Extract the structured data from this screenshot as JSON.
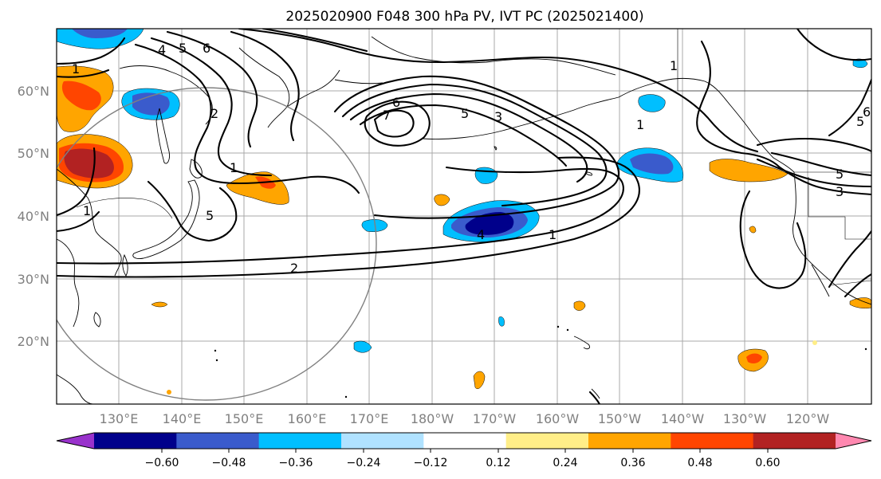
{
  "title": "2025020900 F048 300 hPa PV, IVT PC (2025021400)",
  "lon_labels": [
    "130°E",
    "140°E",
    "150°E",
    "160°E",
    "170°E",
    "180°W",
    "170°W",
    "160°W",
    "150°W",
    "140°W",
    "130°W",
    "120°W"
  ],
  "lat_labels": [
    "60°N",
    "50°N",
    "40°N",
    "30°N",
    "20°N"
  ],
  "contour_labels": [
    "4",
    "5",
    "6",
    "2",
    "1",
    "1",
    "5",
    "6",
    "7",
    "5",
    "3",
    "1",
    "1",
    "1",
    "2",
    "4",
    "1",
    "5",
    "3",
    "5",
    "6"
  ],
  "colorbar": {
    "ticks": [
      "−0.60",
      "−0.48",
      "−0.36",
      "−0.24",
      "−0.12",
      "0.12",
      "0.24",
      "0.36",
      "0.48",
      "0.60"
    ],
    "colors": [
      "#9932cc",
      "#00008b",
      "#3a5bcc",
      "#00bfff",
      "#b0e2ff",
      "#ffffff",
      "#ffee88",
      "#ffa500",
      "#ff4500",
      "#b22222",
      "#ff88b0"
    ]
  },
  "colors": {
    "grid": "#a8a8a8",
    "axis_label": "#808080",
    "contour": "#000000"
  }
}
